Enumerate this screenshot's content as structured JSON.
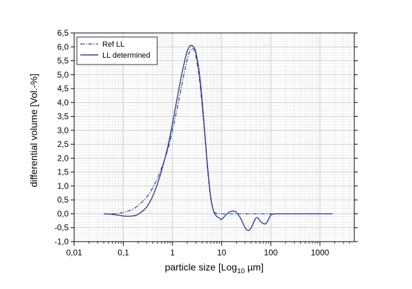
{
  "chart_data": {
    "type": "line",
    "xlabel_main": "particle size [Log",
    "xlabel_sub": "10",
    "xlabel_tail": " µm]",
    "ylabel": "differential volume [Vol.-%]",
    "x_scale": "log",
    "xlim": [
      0.01,
      5000
    ],
    "ylim": [
      -1.0,
      6.5
    ],
    "x_ticks": [
      {
        "value": 0.01,
        "label": "0,01"
      },
      {
        "value": 0.1,
        "label": "0,1"
      },
      {
        "value": 1,
        "label": "1"
      },
      {
        "value": 10,
        "label": "10"
      },
      {
        "value": 100,
        "label": "100"
      },
      {
        "value": 1000,
        "label": "1000"
      }
    ],
    "y_ticks": [
      {
        "value": -1.0,
        "label": "-1,0"
      },
      {
        "value": -0.5,
        "label": "-0,5"
      },
      {
        "value": 0.0,
        "label": "0,0"
      },
      {
        "value": 0.5,
        "label": "0,5"
      },
      {
        "value": 1.0,
        "label": "1,0"
      },
      {
        "value": 1.5,
        "label": "1,5"
      },
      {
        "value": 2.0,
        "label": "2,0"
      },
      {
        "value": 2.5,
        "label": "2,5"
      },
      {
        "value": 3.0,
        "label": "3,0"
      },
      {
        "value": 3.5,
        "label": "3,5"
      },
      {
        "value": 4.0,
        "label": "4,0"
      },
      {
        "value": 4.5,
        "label": "4,5"
      },
      {
        "value": 5.0,
        "label": "5,0"
      },
      {
        "value": 5.5,
        "label": "5,5"
      },
      {
        "value": 6.0,
        "label": "6,0"
      },
      {
        "value": 6.5,
        "label": "6,5"
      }
    ],
    "grid": true,
    "legend_position": "top-left",
    "line_color": "#2b3d8f",
    "series": [
      {
        "name": "Ref LL",
        "style": "dash-dot",
        "x": [
          0.04,
          0.06,
          0.08,
          0.1,
          0.15,
          0.2,
          0.3,
          0.4,
          0.5,
          0.6,
          0.8,
          1.0,
          1.2,
          1.5,
          1.8,
          2.0,
          2.2,
          2.5,
          2.8,
          3.0,
          3.5,
          4.0,
          4.5,
          5.0,
          5.5,
          6.0,
          6.5,
          7.0,
          8.0,
          9.0,
          10,
          15,
          20,
          50,
          100,
          500,
          1000,
          1800
        ],
        "y": [
          0.0,
          0.0,
          0.02,
          0.05,
          0.15,
          0.3,
          0.6,
          0.95,
          1.3,
          1.65,
          2.3,
          3.0,
          3.65,
          4.5,
          5.2,
          5.55,
          5.8,
          5.95,
          5.85,
          5.65,
          4.9,
          3.9,
          2.9,
          1.9,
          1.1,
          0.55,
          0.25,
          0.08,
          0.01,
          0.0,
          0.0,
          0.0,
          0.0,
          0.0,
          0.0,
          0.0,
          0.0,
          0.0
        ]
      },
      {
        "name": "LL determined",
        "style": "solid",
        "x": [
          0.04,
          0.06,
          0.08,
          0.1,
          0.12,
          0.15,
          0.2,
          0.3,
          0.4,
          0.5,
          0.6,
          0.8,
          1.0,
          1.2,
          1.5,
          1.8,
          2.0,
          2.2,
          2.4,
          2.7,
          3.0,
          3.5,
          4.0,
          4.5,
          5.0,
          5.5,
          6.0,
          6.5,
          7.0,
          8.0,
          9.0,
          10,
          12,
          14,
          17,
          20,
          25,
          30,
          35,
          40,
          45,
          50,
          55,
          60,
          70,
          80,
          90,
          100,
          120,
          150,
          200,
          300,
          500,
          1000,
          1800
        ],
        "y": [
          0.0,
          -0.02,
          -0.05,
          -0.08,
          -0.09,
          -0.08,
          -0.02,
          0.25,
          0.65,
          1.1,
          1.55,
          2.4,
          3.25,
          4.0,
          4.9,
          5.55,
          5.85,
          6.0,
          6.05,
          6.0,
          5.8,
          5.1,
          4.1,
          3.0,
          2.0,
          1.2,
          0.6,
          0.25,
          0.05,
          -0.1,
          -0.15,
          -0.2,
          -0.05,
          0.05,
          0.1,
          0.05,
          -0.2,
          -0.5,
          -0.6,
          -0.5,
          -0.3,
          -0.15,
          -0.15,
          -0.25,
          -0.35,
          -0.35,
          -0.2,
          -0.05,
          0.0,
          0.0,
          0.0,
          0.0,
          0.0,
          0.0,
          0.0
        ]
      }
    ]
  }
}
